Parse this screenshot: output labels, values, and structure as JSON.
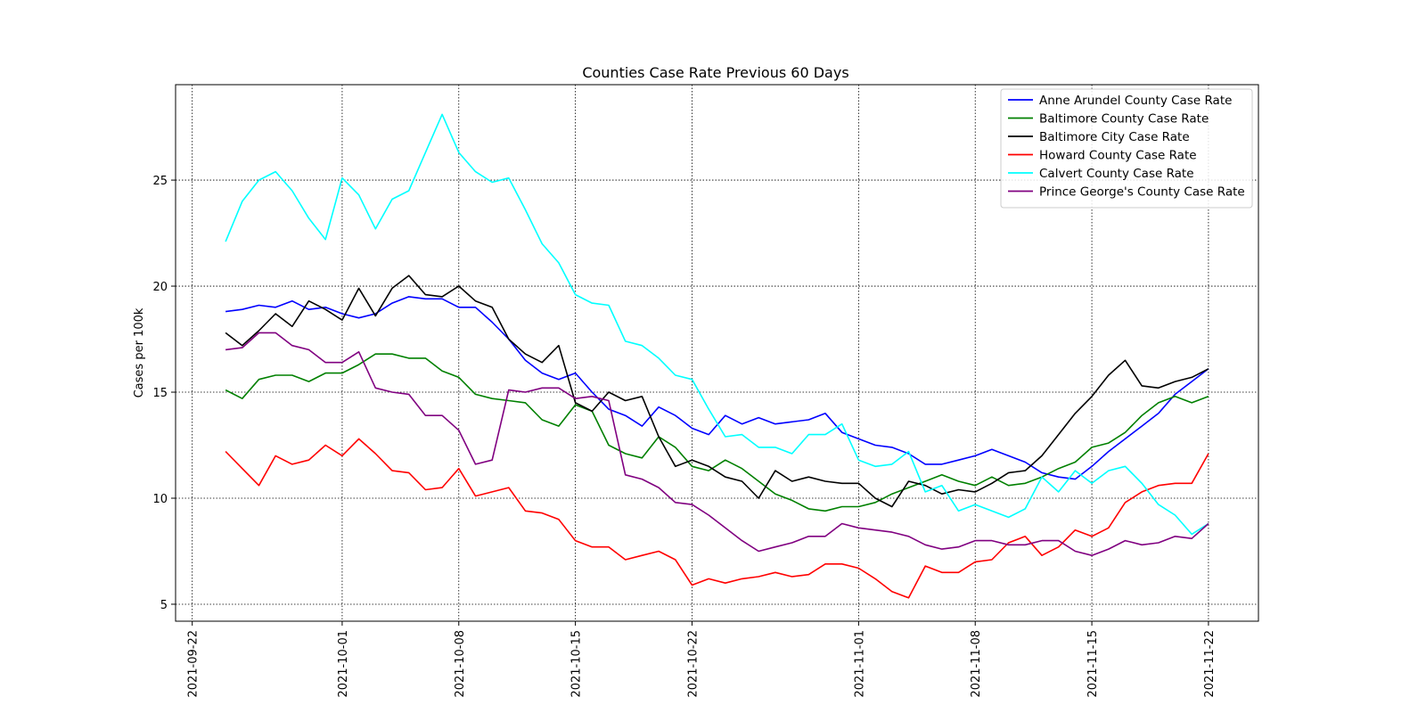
{
  "chart_data": {
    "type": "line",
    "title": "Counties Case Rate Previous 60 Days",
    "xlabel": "",
    "ylabel": "Cases per 100k",
    "x_start": "2021-09-24",
    "xlim": [
      "2021-09-21",
      "2021-11-25"
    ],
    "ylim": [
      4.2,
      29.5
    ],
    "x_ticks": [
      "2021-09-22",
      "2021-10-01",
      "2021-10-08",
      "2021-10-15",
      "2021-10-22",
      "2021-11-01",
      "2021-11-08",
      "2021-11-15",
      "2021-11-22"
    ],
    "y_ticks": [
      5,
      10,
      15,
      20,
      25
    ],
    "grid": true,
    "legend_position": "top-right",
    "series": [
      {
        "name": "Anne Arundel County Case Rate",
        "color": "#0000ff",
        "values": [
          18.8,
          18.9,
          19.1,
          19.0,
          19.3,
          18.9,
          19.0,
          18.7,
          18.5,
          18.7,
          19.2,
          19.5,
          19.4,
          19.4,
          19.0,
          19.0,
          18.3,
          17.5,
          16.5,
          15.9,
          15.6,
          15.9,
          15.0,
          14.2,
          13.9,
          13.4,
          14.3,
          13.9,
          13.3,
          13.0,
          13.9,
          13.5,
          13.8,
          13.5,
          13.6,
          13.7,
          14.0,
          13.1,
          12.8,
          12.5,
          12.4,
          12.1,
          11.6,
          11.6,
          11.8,
          12.0,
          12.3,
          12.0,
          11.7,
          11.2,
          11.0,
          10.9,
          11.5,
          12.2,
          12.8,
          13.4,
          14.0,
          14.9,
          15.5,
          16.1
        ]
      },
      {
        "name": "Baltimore County Case Rate",
        "color": "#008000",
        "values": [
          15.1,
          14.7,
          15.6,
          15.8,
          15.8,
          15.5,
          15.9,
          15.9,
          16.3,
          16.8,
          16.8,
          16.6,
          16.6,
          16.0,
          15.7,
          14.9,
          14.7,
          14.6,
          14.5,
          13.7,
          13.4,
          14.4,
          14.1,
          12.5,
          12.1,
          11.9,
          12.9,
          12.4,
          11.5,
          11.3,
          11.8,
          11.4,
          10.8,
          10.2,
          9.9,
          9.5,
          9.4,
          9.6,
          9.6,
          9.8,
          10.2,
          10.5,
          10.8,
          11.1,
          10.8,
          10.6,
          11.0,
          10.6,
          10.7,
          11.0,
          11.4,
          11.7,
          12.4,
          12.6,
          13.1,
          13.9,
          14.5,
          14.8,
          14.5,
          14.8
        ]
      },
      {
        "name": "Baltimore City Case Rate",
        "color": "#000000",
        "values": [
          17.8,
          17.2,
          17.9,
          18.7,
          18.1,
          19.3,
          18.9,
          18.4,
          19.9,
          18.6,
          19.9,
          20.5,
          19.6,
          19.5,
          20.0,
          19.3,
          19.0,
          17.5,
          16.8,
          16.4,
          17.2,
          14.5,
          14.1,
          15.0,
          14.6,
          14.8,
          12.9,
          11.5,
          11.8,
          11.5,
          11.0,
          10.8,
          10.0,
          11.3,
          10.8,
          11.0,
          10.8,
          10.7,
          10.7,
          10.0,
          9.6,
          10.8,
          10.6,
          10.2,
          10.4,
          10.3,
          10.7,
          11.2,
          11.3,
          12.0,
          13.0,
          14.0,
          14.8,
          15.8,
          16.5,
          15.3,
          15.2,
          15.5,
          15.7,
          16.1
        ]
      },
      {
        "name": "Howard County Case Rate",
        "color": "#ff0000",
        "values": [
          12.2,
          11.4,
          10.6,
          12.0,
          11.6,
          11.8,
          12.5,
          12.0,
          12.8,
          12.1,
          11.3,
          11.2,
          10.4,
          10.5,
          11.4,
          10.1,
          10.3,
          10.5,
          9.4,
          9.3,
          9.0,
          8.0,
          7.7,
          7.7,
          7.1,
          7.3,
          7.5,
          7.1,
          5.9,
          6.2,
          6.0,
          6.2,
          6.3,
          6.5,
          6.3,
          6.4,
          6.9,
          6.9,
          6.7,
          6.2,
          5.6,
          5.3,
          6.8,
          6.5,
          6.5,
          7.0,
          7.1,
          7.9,
          8.2,
          7.3,
          7.7,
          8.5,
          8.2,
          8.6,
          9.8,
          10.3,
          10.6,
          10.7,
          10.7,
          12.1
        ]
      },
      {
        "name": "Calvert County Case Rate",
        "color": "#00ffff",
        "values": [
          22.1,
          24.0,
          25.0,
          25.4,
          24.5,
          23.2,
          22.2,
          25.1,
          24.3,
          22.7,
          24.1,
          24.5,
          26.3,
          28.1,
          26.3,
          25.4,
          24.9,
          25.1,
          23.6,
          22.0,
          21.1,
          19.6,
          19.2,
          19.1,
          17.4,
          17.2,
          16.6,
          15.8,
          15.6,
          14.2,
          12.9,
          13.0,
          12.4,
          12.4,
          12.1,
          13.0,
          13.0,
          13.5,
          11.8,
          11.5,
          11.6,
          12.2,
          10.3,
          10.6,
          9.4,
          9.7,
          9.4,
          9.1,
          9.5,
          11.0,
          10.3,
          11.3,
          10.7,
          11.3,
          11.5,
          10.7,
          9.7,
          9.2,
          8.3,
          8.8
        ]
      },
      {
        "name": "Prince George's County Case Rate",
        "color": "#800080",
        "values": [
          17.0,
          17.1,
          17.8,
          17.8,
          17.2,
          17.0,
          16.4,
          16.4,
          16.9,
          15.2,
          15.0,
          14.9,
          13.9,
          13.9,
          13.2,
          11.6,
          11.8,
          15.1,
          15.0,
          15.2,
          15.2,
          14.7,
          14.8,
          14.6,
          11.1,
          10.9,
          10.5,
          9.8,
          9.7,
          9.2,
          8.6,
          8.0,
          7.5,
          7.7,
          7.9,
          8.2,
          8.2,
          8.8,
          8.6,
          8.5,
          8.4,
          8.2,
          7.8,
          7.6,
          7.7,
          8.0,
          8.0,
          7.8,
          7.8,
          8.0,
          8.0,
          7.5,
          7.3,
          7.6,
          8.0,
          7.8,
          7.9,
          8.2,
          8.1,
          8.8
        ]
      }
    ]
  }
}
